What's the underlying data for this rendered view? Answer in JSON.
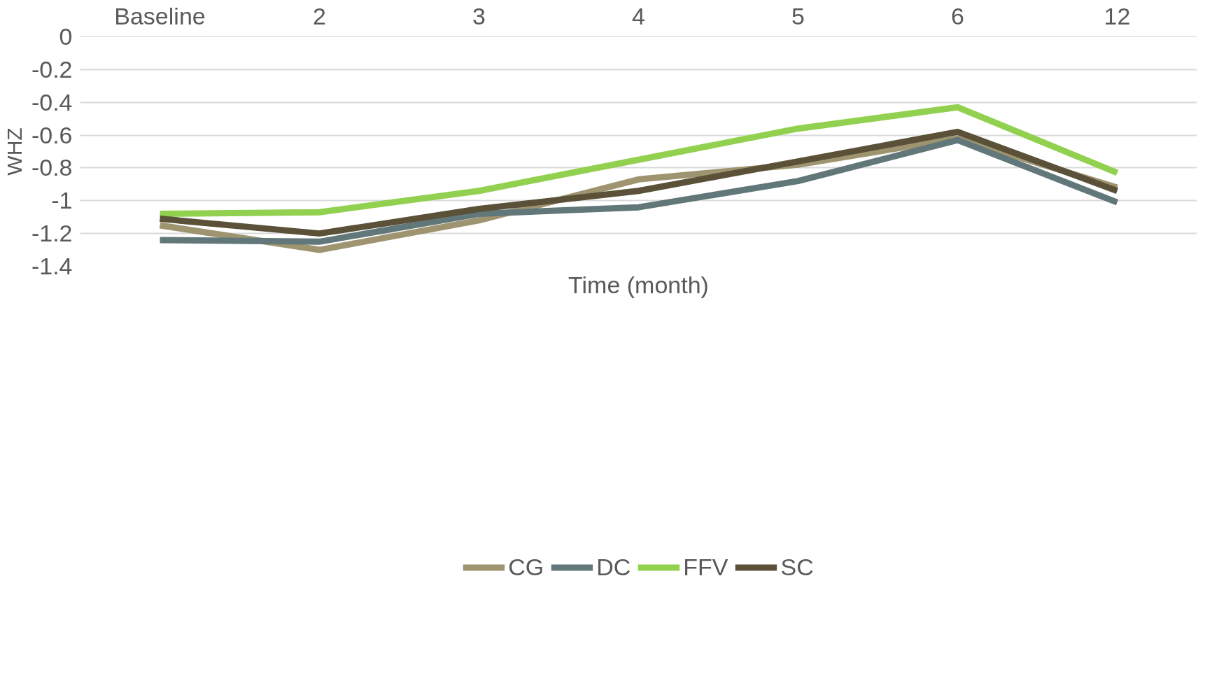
{
  "chart_data": {
    "type": "line",
    "xlabel": "Time (month)",
    "ylabel": "WHZ",
    "categories": [
      "Baseline",
      "2",
      "3",
      "4",
      "5",
      "6",
      "12"
    ],
    "series": [
      {
        "name": "CG",
        "color": "#9e9570",
        "values": [
          -1.15,
          -1.3,
          -1.12,
          -0.87,
          -0.78,
          -0.62,
          -0.92
        ]
      },
      {
        "name": "DC",
        "color": "#62777a",
        "values": [
          -1.24,
          -1.25,
          -1.08,
          -1.04,
          -0.88,
          -0.63,
          -1.01
        ]
      },
      {
        "name": "FFV",
        "color": "#92d050",
        "values": [
          -1.08,
          -1.07,
          -0.94,
          -0.75,
          -0.56,
          -0.43,
          -0.83
        ]
      },
      {
        "name": "SC",
        "color": "#5a5138",
        "values": [
          -1.11,
          -1.2,
          -1.05,
          -0.94,
          -0.76,
          -0.58,
          -0.94
        ]
      }
    ],
    "ylim": [
      -1.4,
      0
    ],
    "yticks": [
      0,
      -0.2,
      -0.4,
      -0.6,
      -0.8,
      -1,
      -1.2,
      -1.4
    ],
    "grid": "y",
    "legend": "bottom",
    "marker": "none",
    "line_style": "solid"
  }
}
